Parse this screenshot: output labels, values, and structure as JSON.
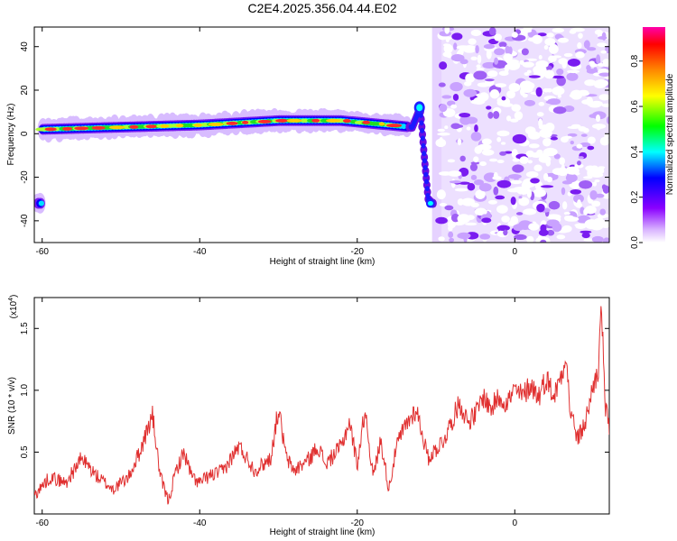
{
  "title": "C2E4.2025.356.04.44.E02",
  "chart_data": [
    {
      "type": "heatmap",
      "name": "spectrogram",
      "xlabel": "Height of straight line (km)",
      "ylabel": "Frequency (Hz)",
      "xlim": [
        -61,
        12
      ],
      "ylim": [
        -50,
        49
      ],
      "xticks": [
        -60,
        -40,
        -20,
        0
      ],
      "yticks": [
        -40,
        -20,
        0,
        20,
        40
      ],
      "ridge": {
        "description_points": [
          {
            "x": -60,
            "y": 2
          },
          {
            "x": -50,
            "y": 3
          },
          {
            "x": -40,
            "y": 4
          },
          {
            "x": -30,
            "y": 6
          },
          {
            "x": -22,
            "y": 6
          },
          {
            "x": -16,
            "y": 4
          },
          {
            "x": -13,
            "y": 3
          },
          {
            "x": -12,
            "y": 12
          },
          {
            "x": -11.5,
            "y": -10
          },
          {
            "x": -11,
            "y": -30
          },
          {
            "x": -10.5,
            "y": -32
          }
        ]
      },
      "noise_region_x": [
        -10,
        12
      ],
      "colorbar": {
        "label": "Normalized spectral amplitude",
        "range": [
          0.0,
          0.95
        ],
        "ticks": [
          "0.0",
          "0.2",
          "0.4",
          "0.6",
          "0.8"
        ],
        "colors": [
          "#ffffff",
          "#d9b3ff",
          "#8a00ff",
          "#0000ff",
          "#00ffff",
          "#00ff00",
          "#ffff00",
          "#ff8800",
          "#ff0000",
          "#ff00aa"
        ]
      }
    },
    {
      "type": "line",
      "name": "snr",
      "xlabel": "Height of straight line (km)",
      "ylabel": "SNR (10 * v/v)",
      "scale_label": "(x10",
      "scale_exp": "4",
      "scale_close": ")",
      "xlim": [
        -61,
        12
      ],
      "ylim": [
        0.0,
        1.75
      ],
      "xticks": [
        -60,
        -40,
        -20,
        0
      ],
      "yticks": [
        0.5,
        1.0,
        1.5
      ],
      "ytick_labels": [
        "0.5",
        "1.0",
        "1.5"
      ],
      "color": "#e03030",
      "x": [
        -61,
        -59,
        -57,
        -55,
        -53,
        -51,
        -49,
        -47.5,
        -46,
        -45,
        -44,
        -43,
        -42,
        -41,
        -40,
        -39,
        -37,
        -35,
        -34,
        -33,
        -31,
        -30,
        -29,
        -28,
        -26,
        -25,
        -24,
        -22,
        -21,
        -20,
        -19,
        -18,
        -17,
        -16,
        -15,
        -14,
        -12.5,
        -11,
        -9,
        -7,
        -6,
        -5,
        -4,
        -3,
        -2,
        -1,
        0,
        1,
        2,
        3,
        4,
        5,
        6,
        6.5,
        7,
        8,
        9,
        10,
        10.6,
        11,
        11.5,
        12
      ],
      "values": [
        0.15,
        0.3,
        0.25,
        0.45,
        0.3,
        0.2,
        0.3,
        0.52,
        0.8,
        0.3,
        0.1,
        0.35,
        0.5,
        0.3,
        0.25,
        0.3,
        0.35,
        0.55,
        0.45,
        0.35,
        0.45,
        0.85,
        0.45,
        0.35,
        0.45,
        0.55,
        0.4,
        0.55,
        0.75,
        0.4,
        0.85,
        0.3,
        0.6,
        0.2,
        0.55,
        0.7,
        0.85,
        0.45,
        0.6,
        0.9,
        0.75,
        0.8,
        0.95,
        0.85,
        0.95,
        0.9,
        1.0,
        0.95,
        1.05,
        0.95,
        1.1,
        0.95,
        1.15,
        1.3,
        0.85,
        0.6,
        0.75,
        1.05,
        1.15,
        1.7,
        0.85,
        0.7
      ]
    }
  ]
}
